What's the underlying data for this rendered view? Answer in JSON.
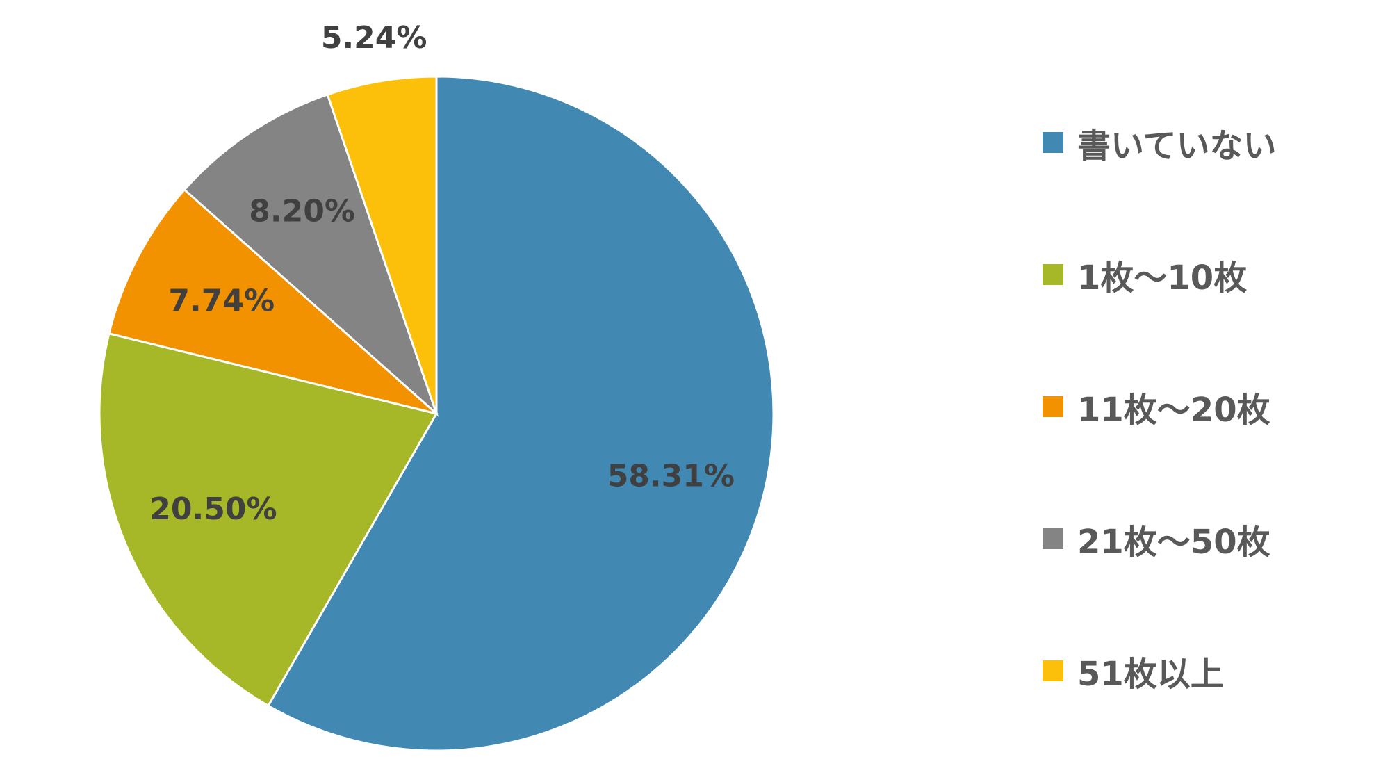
{
  "chart_data": {
    "type": "pie",
    "categories": [
      "書いていない",
      "1枚～10枚",
      "11枚～20枚",
      "21枚～50枚",
      "51枚以上"
    ],
    "values": [
      58.31,
      20.5,
      7.74,
      8.2,
      5.24
    ],
    "data_labels": [
      "58.31%",
      "20.50%",
      "7.74%",
      "8.20%",
      "5.24%"
    ],
    "colors": [
      "#4189b3",
      "#a6b727",
      "#f39200",
      "#848484",
      "#fcc00a"
    ],
    "start": "12 o'clock",
    "direction": "clockwise",
    "legend_position": "right",
    "title": ""
  }
}
